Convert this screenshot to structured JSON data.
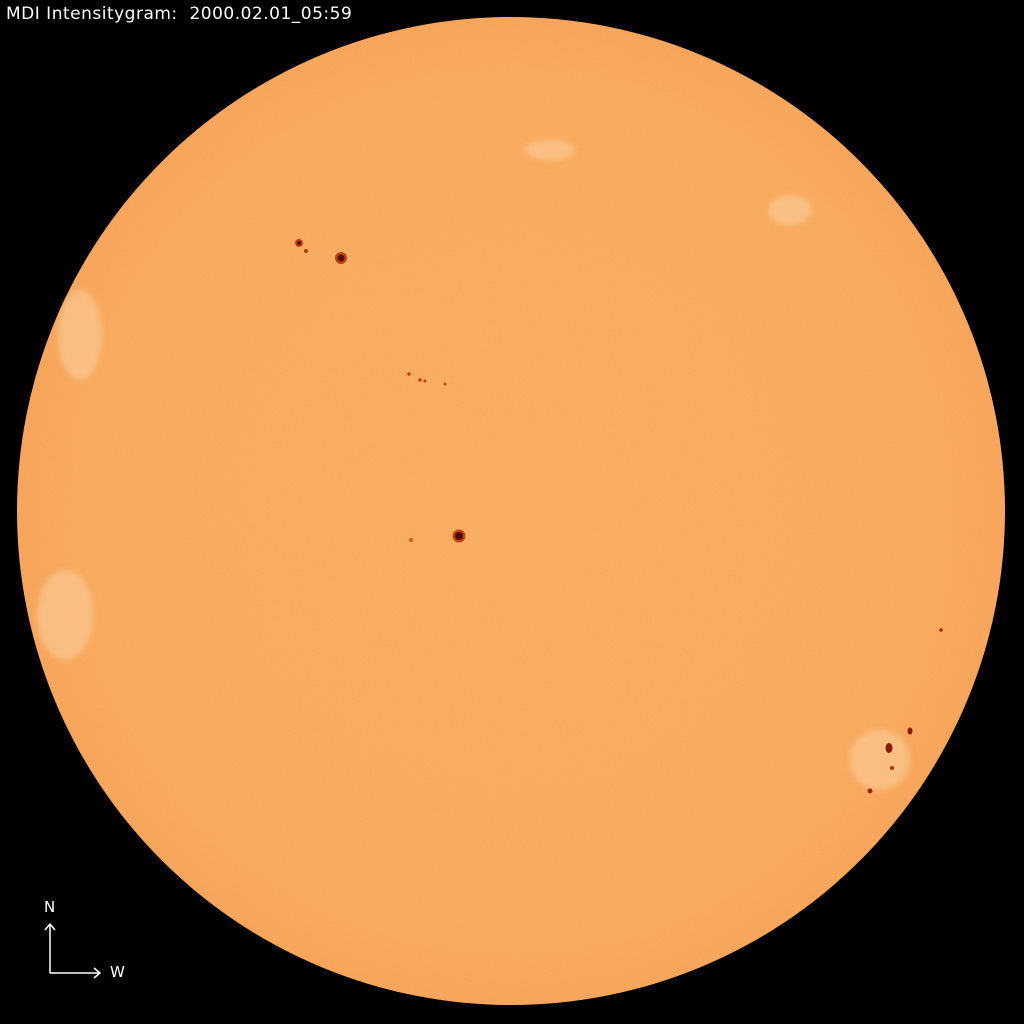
{
  "header": {
    "title": "MDI Intensitygram:  2000.02.01_05:59"
  },
  "compass": {
    "north_label": "N",
    "west_label": "W"
  },
  "colors": {
    "background": "#000000",
    "disk": "#f9a95c",
    "sunspot_umbra": "#5a0f05",
    "sunspot_penumbra": "#c0400f",
    "faculae": "#fcd3a8"
  },
  "icons": {
    "compass": "north-west-arrows-icon"
  }
}
